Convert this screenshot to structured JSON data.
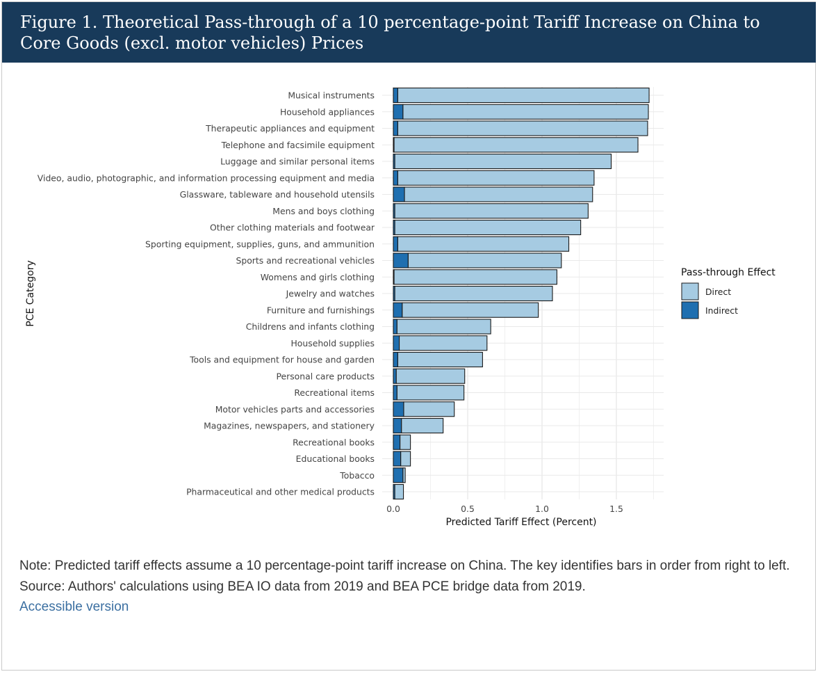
{
  "figure": {
    "title": "Figure 1. Theoretical Pass-through of a 10 percentage-point Tariff Increase on China to Core Goods (excl. motor vehicles) Prices",
    "note": "Note: Predicted tariff effects assume a 10 percentage-point tariff increase on China. The key identifies bars in order from right to left.",
    "source": "Source: Authors' calculations using BEA IO data from 2019 and BEA PCE bridge data from 2019.",
    "accessible_link": "Accessible version"
  },
  "chart_data": {
    "type": "bar",
    "orientation": "horizontal",
    "stacked": true,
    "xlabel": "Predicted Tariff Effect (Percent)",
    "ylabel": "PCE Category",
    "xlim": [
      0,
      1.8
    ],
    "xticks": [
      0.0,
      0.5,
      1.0,
      1.5
    ],
    "xtick_labels": [
      "0.0",
      "0.5",
      "1.0",
      "1.5"
    ],
    "grid": true,
    "legend": {
      "title": "Pass-through Effect",
      "position": "right",
      "entries": [
        {
          "name": "Direct",
          "color": "#a6cbe2"
        },
        {
          "name": "Indirect",
          "color": "#1f6fb0"
        }
      ]
    },
    "categories": [
      "Musical instruments",
      "Household appliances",
      "Therapeutic appliances and equipment",
      "Telephone and facsimile equipment",
      "Luggage and similar personal items",
      "Video, audio, photographic, and information processing equipment and media",
      "Glassware, tableware and household utensils",
      "Mens and boys clothing",
      "Other clothing materials and footwear",
      "Sporting equipment, supplies, guns, and ammunition",
      "Sports and recreational vehicles",
      "Womens and girls clothing",
      "Jewelry and watches",
      "Furniture and furnishings",
      "Childrens and infants clothing",
      "Household supplies",
      "Tools and equipment for house and garden",
      "Personal care products",
      "Recreational items",
      "Motor vehicles parts and accessories",
      "Magazines, newspapers, and stationery",
      "Recreational books",
      "Educational books",
      "Tobacco",
      "Pharmaceutical and other medical products"
    ],
    "series": [
      {
        "name": "Indirect",
        "color": "#1f6fb0",
        "values": [
          0.03,
          0.065,
          0.03,
          0.005,
          0.01,
          0.03,
          0.075,
          0.01,
          0.01,
          0.03,
          0.1,
          0.005,
          0.01,
          0.06,
          0.025,
          0.04,
          0.03,
          0.02,
          0.025,
          0.07,
          0.055,
          0.045,
          0.05,
          0.065,
          0.01
        ]
      },
      {
        "name": "Direct",
        "color": "#a6cbe2",
        "values": [
          1.69,
          1.65,
          1.68,
          1.64,
          1.455,
          1.32,
          1.265,
          1.3,
          1.25,
          1.15,
          1.03,
          1.095,
          1.06,
          0.915,
          0.63,
          0.59,
          0.57,
          0.46,
          0.45,
          0.34,
          0.28,
          0.07,
          0.065,
          0.015,
          0.058
        ]
      }
    ]
  }
}
